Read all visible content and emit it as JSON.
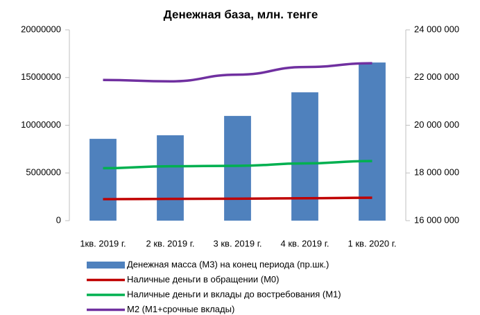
{
  "chart_data": {
    "type": "bar-line",
    "title": "Денежная база, млн. тенге",
    "categories": [
      "1кв. 2019 г.",
      "2 кв. 2019 г.",
      "3 кв. 2019 г.",
      "4 кв. 2019 г.",
      "1 кв. 2020 г."
    ],
    "series": [
      {
        "name": "Денежная масса (М3) на конец периода (пр.шк.)",
        "type": "bar",
        "axis": "y2",
        "color": "#4f81bd",
        "values": [
          19430000,
          19580000,
          20390000,
          21380000,
          22630000
        ]
      },
      {
        "name": "Наличные деньги  в обращении (М0)",
        "type": "line",
        "color": "#c00000",
        "values": [
          2250000,
          2280000,
          2300000,
          2350000,
          2400000
        ]
      },
      {
        "name": "Наличные деньги и вклады до востребования (М1)",
        "type": "line",
        "color": "#00b050",
        "values": [
          5500000,
          5700000,
          5750000,
          6000000,
          6250000
        ]
      },
      {
        "name": "М2 (М1+срочные вклады)",
        "type": "line",
        "color": "#7030a0",
        "values": [
          14750000,
          14600000,
          15300000,
          16100000,
          16500000
        ]
      }
    ],
    "ylim": [
      0,
      20000000
    ],
    "yticks": [
      0,
      5000000,
      10000000,
      15000000,
      20000000
    ],
    "y2lim": [
      16000000,
      24000000
    ],
    "y2ticks": [
      {
        "value": 16000000,
        "label": "16 000 000"
      },
      {
        "value": 18000000,
        "label": "18 000 000"
      },
      {
        "value": 20000000,
        "label": "20 000 000"
      },
      {
        "value": 22000000,
        "label": "22 000 000"
      },
      {
        "value": 24000000,
        "label": "24 000 000"
      }
    ],
    "legend": "bottom"
  }
}
